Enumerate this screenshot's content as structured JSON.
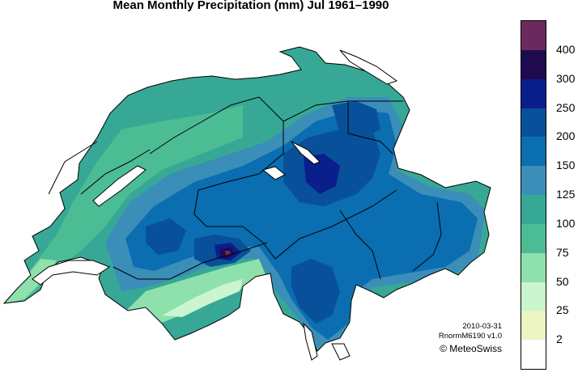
{
  "title": "Mean Monthly Precipitation (mm) Jul 1961–1990",
  "legend": {
    "labels": [
      "400",
      "300",
      "250",
      "200",
      "150",
      "125",
      "100",
      "75",
      "50",
      "25",
      "2"
    ],
    "colors": [
      "#6a2a5e",
      "#1e0a4e",
      "#0a1e8c",
      "#08509a",
      "#0a6eb0",
      "#3a8eb8",
      "#37a895",
      "#4cbc94",
      "#8ee0ad",
      "#caf5cf",
      "#edf5c2",
      "#ffffff"
    ]
  },
  "footer": {
    "date": "2010-03-31",
    "product": "RnormM6190 v1.0",
    "credit": "© MeteoSwiss"
  }
}
